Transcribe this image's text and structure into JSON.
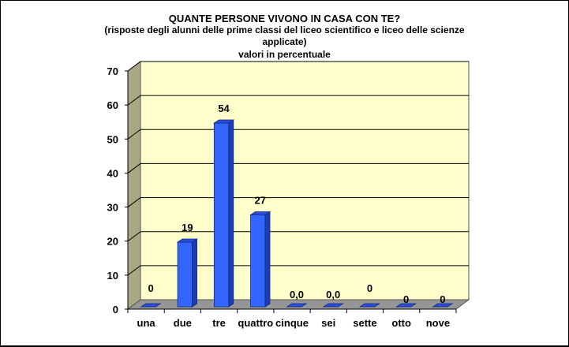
{
  "chart_data": {
    "type": "bar",
    "title": "QUANTE PERSONE VIVONO IN CASA CON TE?",
    "subtitle_lines": [
      "(risposte degli alunni delle prime classi del liceo scientifico e liceo delle scienze",
      "applicate)",
      "valori in percentuale"
    ],
    "categories": [
      "una",
      "due",
      "tre",
      "quattro",
      "cinque",
      "sei",
      "sette",
      "otto",
      "nove"
    ],
    "values": [
      0,
      19,
      54,
      27,
      0,
      0,
      0,
      0,
      0
    ],
    "data_labels": [
      "0",
      "19",
      "54",
      "27",
      "0,0",
      "0,0",
      "0",
      "0",
      "0"
    ],
    "xlabel": "",
    "ylabel": "",
    "ylim": [
      0,
      70
    ],
    "yticks": [
      0,
      10,
      20,
      30,
      40,
      50,
      60,
      70
    ],
    "grid": true,
    "legend": "none",
    "style": "3d-column",
    "colors": {
      "bar": "#3366FF",
      "bar_side": "#1F3DB3",
      "bar_top": "#2A4FD6",
      "back_wall": "#FFFFCC",
      "side_wall": "#A9A882",
      "floor": "#969696",
      "gridline": "#000000"
    }
  }
}
